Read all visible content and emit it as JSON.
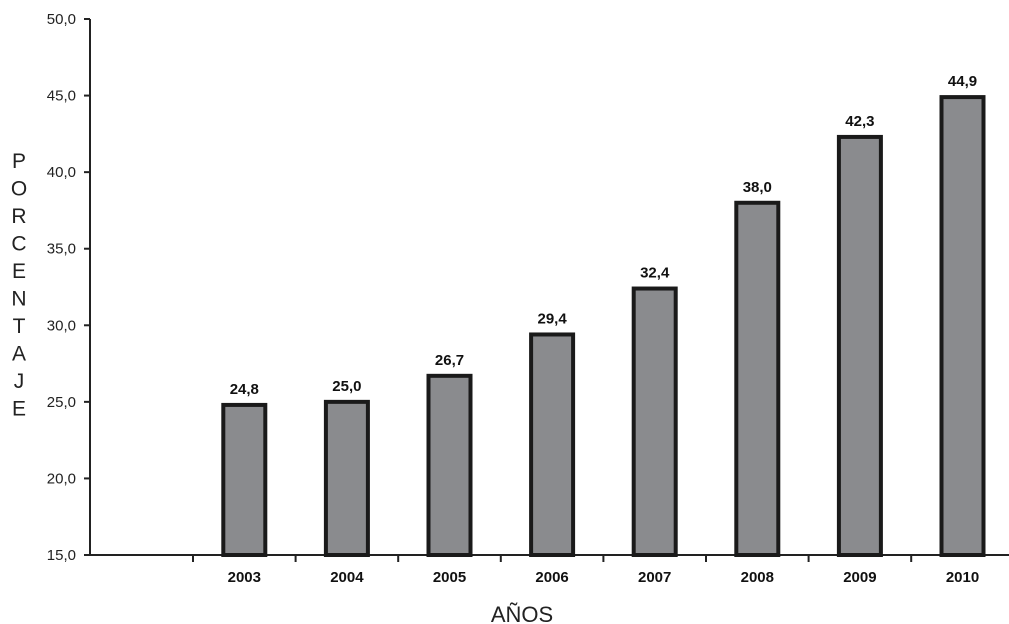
{
  "chart_data": {
    "type": "bar",
    "categories": [
      "2003",
      "2004",
      "2005",
      "2006",
      "2007",
      "2008",
      "2009",
      "2010"
    ],
    "values": [
      24.8,
      25.0,
      26.7,
      29.4,
      32.4,
      38.0,
      42.3,
      44.9
    ],
    "value_labels": [
      "24,8",
      "25,0",
      "26,7",
      "29,4",
      "32,4",
      "38,0",
      "42,3",
      "44,9"
    ],
    "xlabel": "AÑOS",
    "ylabel": "PORCENTAJE",
    "ylim": [
      15.0,
      50.0
    ],
    "yticks": [
      15.0,
      20.0,
      25.0,
      30.0,
      35.0,
      40.0,
      45.0,
      50.0
    ],
    "ytick_labels": [
      "15,0",
      "20,0",
      "25,0",
      "30,0",
      "35,0",
      "40,0",
      "45,0",
      "50,0"
    ],
    "grid": false,
    "legend": "none",
    "bar_color": "#8a8b8e",
    "bar_edge_color": "#1a1a1a"
  }
}
